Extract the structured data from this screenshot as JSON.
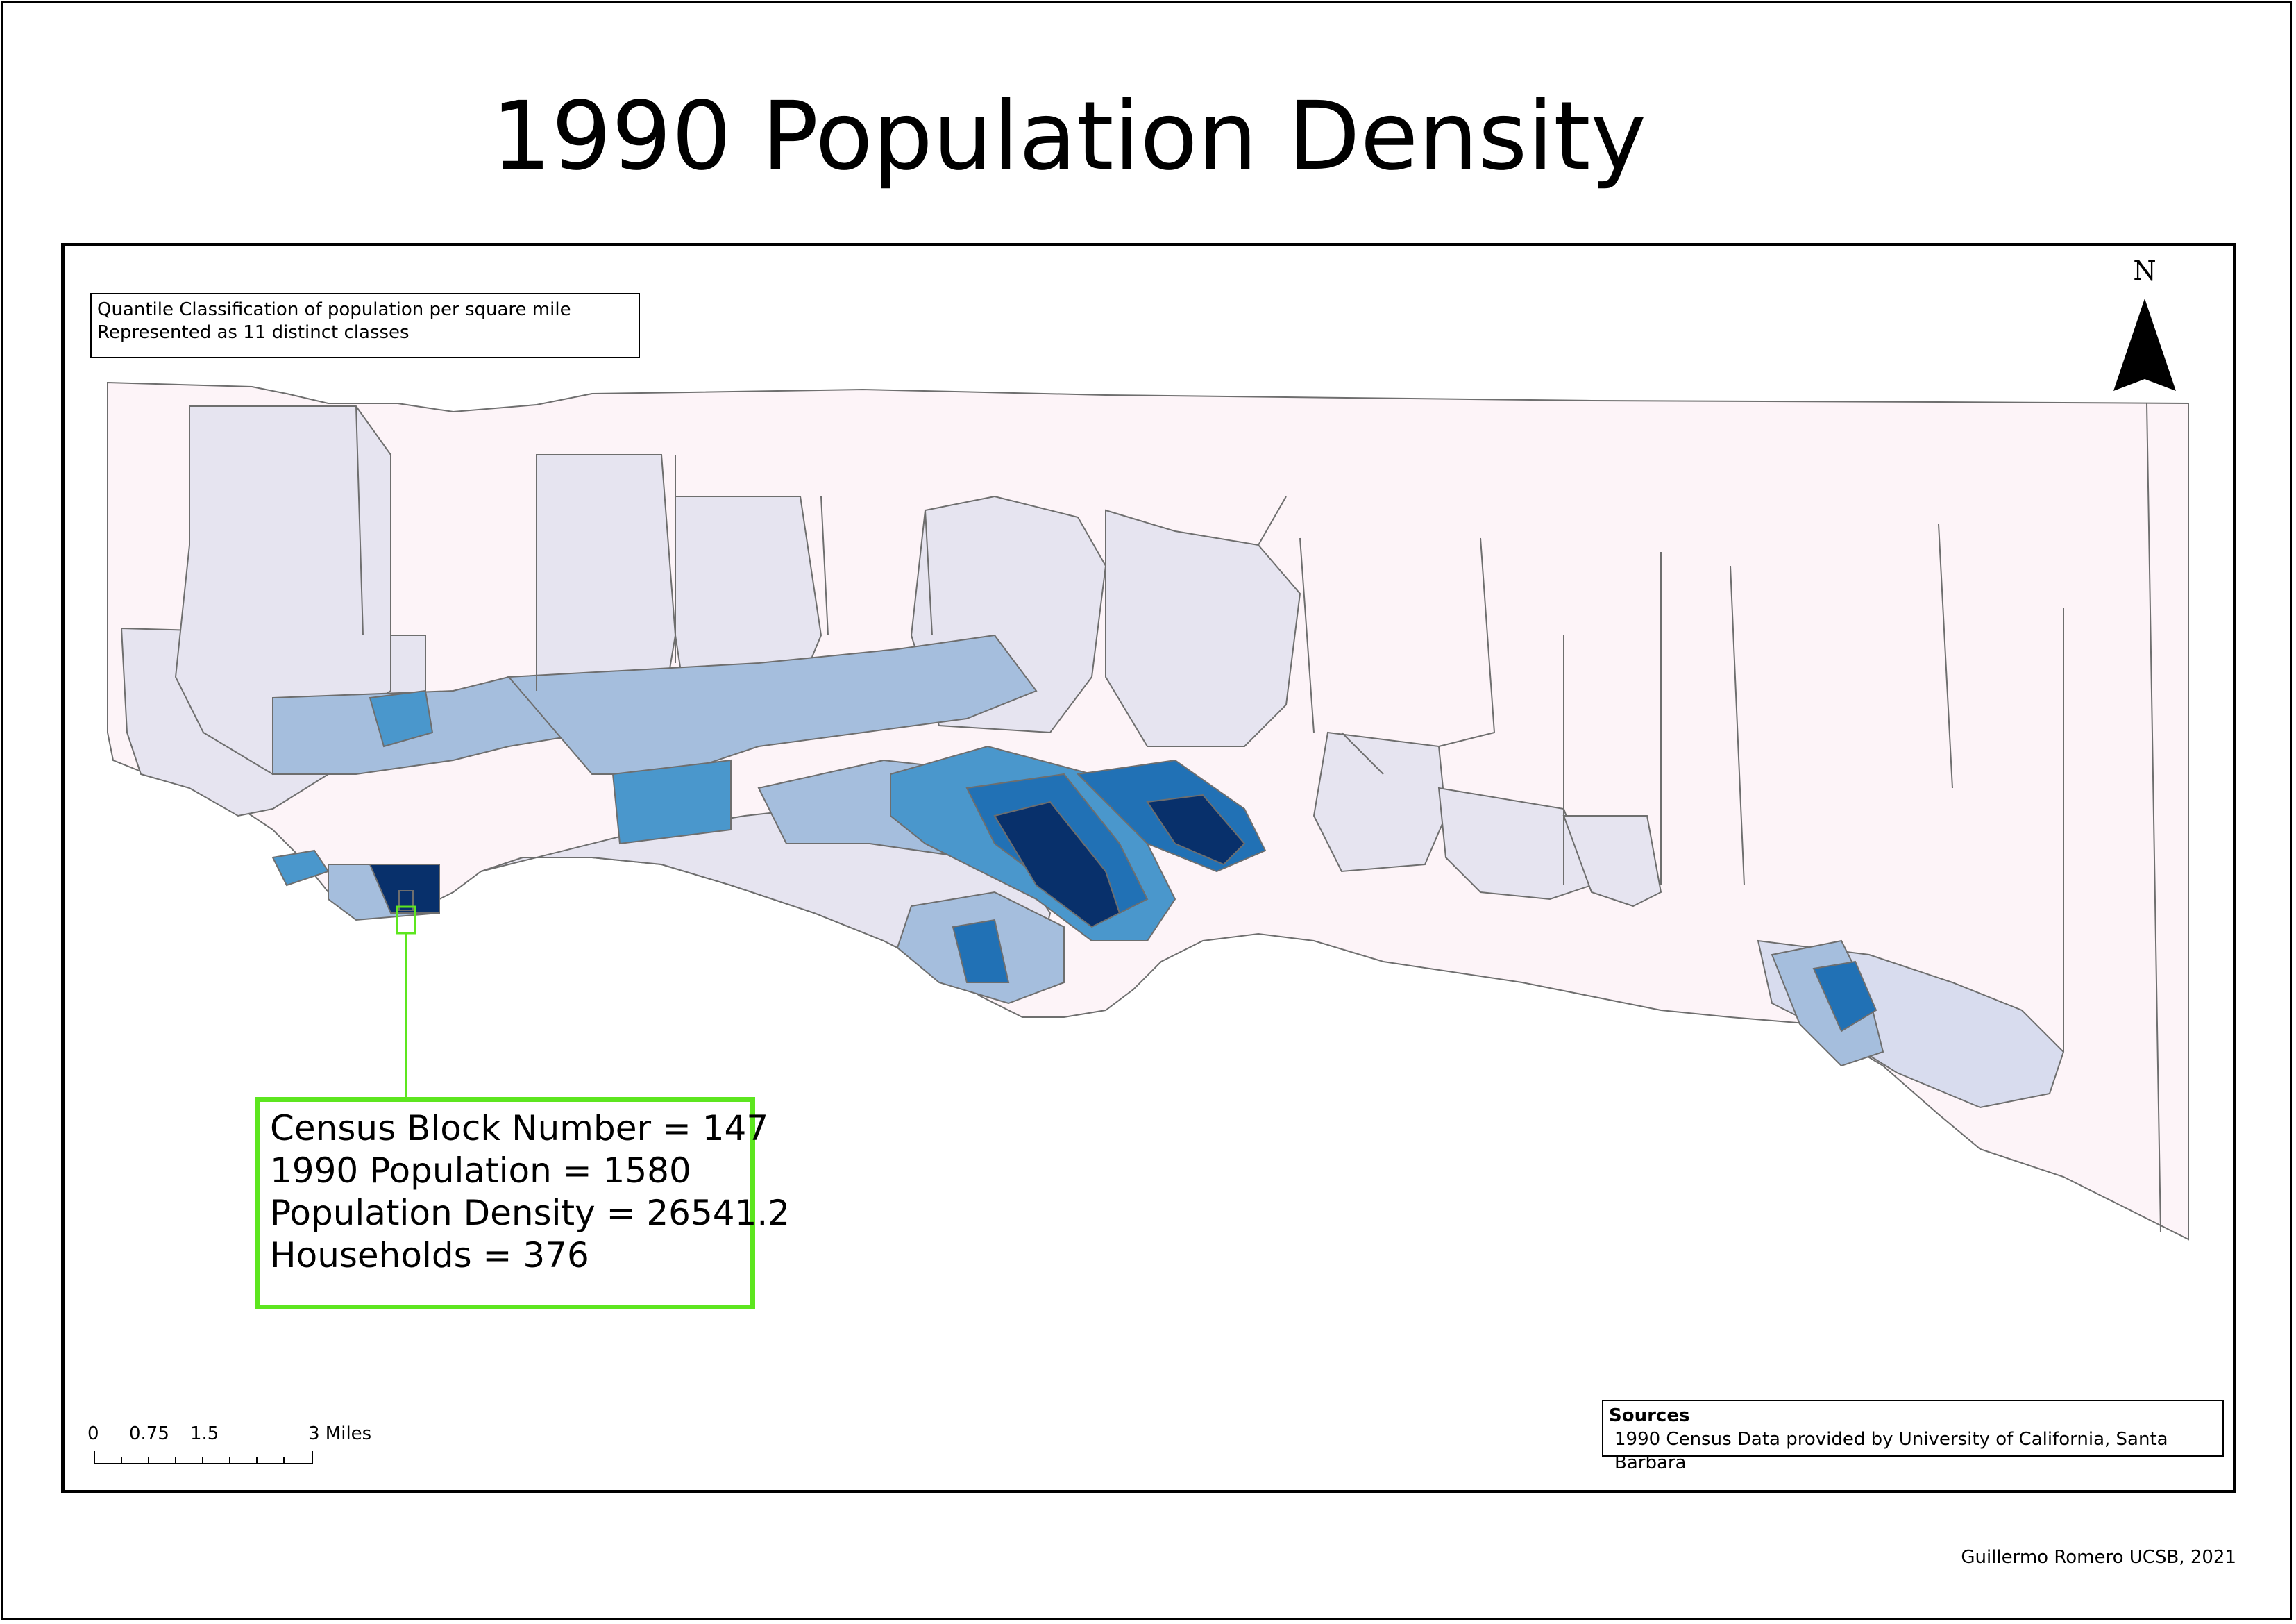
{
  "title": "1990 Population Density",
  "classification_note": {
    "line1": "Quantile Classification of population per square mile",
    "line2": "Represented as 11 distinct classes"
  },
  "north_arrow": {
    "letter": "N"
  },
  "callout": {
    "line1": "Census Block Number = 147",
    "line2": "1990 Population = 1580",
    "line3": "Population Density = 26541.2",
    "line4": "Households = 376",
    "border_color": "#5de61f"
  },
  "scale_bar": {
    "labels": [
      "0",
      "0.75",
      "1.5",
      "3 Miles"
    ]
  },
  "sources": {
    "heading": "Sources",
    "text": "1990 Census Data provided by University of California, Santa Barbara"
  },
  "credit": "Guillermo Romero UCSB, 2021",
  "colors": {
    "background_region": "#fdf4f8",
    "class_low": "#e6e4f0",
    "class_light": "#d8dcee",
    "class_mid_light": "#a5bedd",
    "class_mid": "#4a97cc",
    "class_high": "#2171b5",
    "class_highest": "#08306b",
    "boundary": "#6e6e6e"
  }
}
